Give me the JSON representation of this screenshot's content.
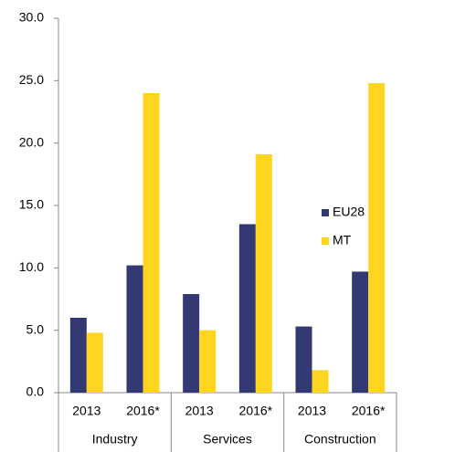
{
  "chart_data": {
    "type": "bar",
    "categories": [
      "2013",
      "2016*",
      "2013",
      "2016*",
      "2013",
      "2016*"
    ],
    "groups": [
      "Industry",
      "Services",
      "Construction"
    ],
    "series": [
      {
        "name": "EU28",
        "color": "#333a73",
        "values": [
          6.0,
          10.2,
          7.9,
          13.5,
          5.3,
          9.7
        ]
      },
      {
        "name": "MT",
        "color": "#ffd520",
        "values": [
          4.8,
          24.0,
          5.0,
          19.1,
          1.8,
          24.8
        ]
      }
    ],
    "ylim": [
      0,
      30
    ],
    "yticks": [
      {
        "value": 0,
        "label": "0.0"
      },
      {
        "value": 5,
        "label": "5.0"
      },
      {
        "value": 10,
        "label": "10.0"
      },
      {
        "value": 15,
        "label": "15.0"
      },
      {
        "value": 20,
        "label": "20.0"
      },
      {
        "value": 25,
        "label": "25.0"
      },
      {
        "value": 30,
        "label": "30.0"
      }
    ]
  }
}
